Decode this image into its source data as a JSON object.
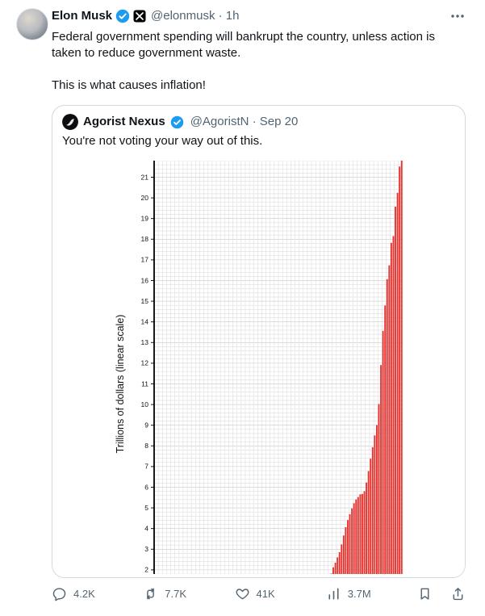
{
  "tweet": {
    "author": "Elon Musk",
    "meta": "@elonmusk · 1h",
    "text_1": "Federal government spending will bankrupt the country, unless action is taken to reduce government waste.",
    "text_2": "This is what causes inflation!"
  },
  "quote": {
    "author": "Agorist Nexus",
    "meta": "@AgoristN · Sep 20",
    "text": "You're not voting your way out of this."
  },
  "actions": {
    "reply": "4.2K",
    "repost": "7.7K",
    "like": "41K",
    "views": "3.7M"
  },
  "colors": {
    "accent_blue": "#1d9bf0",
    "text_primary": "#0f1419",
    "text_secondary": "#536471",
    "card_border": "#cfd9de",
    "bar_red": "#e73430"
  },
  "icons": [
    "verified-badge-icon",
    "x-affiliate-badge-icon",
    "more-icon",
    "reply-icon",
    "repost-icon",
    "like-icon",
    "views-icon",
    "bookmark-icon",
    "share-icon"
  ],
  "chart_data": {
    "type": "bar",
    "title": "",
    "xlabel": "",
    "ylabel": "Trillions of dollars (linear scale)",
    "yticks": [
      2,
      3,
      4,
      5,
      6,
      7,
      8,
      9,
      10,
      11,
      12,
      13,
      14,
      15,
      16,
      17,
      18,
      19,
      20,
      21
    ],
    "ylim_visible": [
      1.8,
      21.8
    ],
    "x_start_year": 1900,
    "x_end_year": 2019,
    "bar_color": "#e73430",
    "grid": true,
    "legend": "none",
    "values": [
      0.0021,
      0.0021,
      0.0021,
      0.0022,
      0.0023,
      0.0024,
      0.0025,
      0.0026,
      0.0027,
      0.0026,
      0.0026,
      0.0027,
      0.0027,
      0.0028,
      0.0029,
      0.003,
      0.0036,
      0.0059,
      0.0147,
      0.0274,
      0.0259,
      0.024,
      0.023,
      0.0224,
      0.021,
      0.0205,
      0.0196,
      0.0185,
      0.0175,
      0.0169,
      0.0162,
      0.0168,
      0.0194,
      0.0227,
      0.027,
      0.0287,
      0.0337,
      0.0364,
      0.0371,
      0.0404,
      0.043,
      0.049,
      0.0724,
      0.1367,
      0.2011,
      0.2587,
      0.2694,
      0.2583,
      0.2523,
      0.2527,
      0.2572,
      0.2552,
      0.2592,
      0.266,
      0.2712,
      0.2744,
      0.2728,
      0.2705,
      0.2763,
      0.2847,
      0.2863,
      0.289,
      0.2983,
      0.3058,
      0.3118,
      0.3173,
      0.3197,
      0.3266,
      0.3479,
      0.3537,
      0.3709,
      0.3981,
      0.4271,
      0.4581,
      0.4751,
      0.5331,
      0.62,
      0.6986,
      0.7714,
      0.8267,
      0.9075,
      0.9979,
      1.142,
      1.377,
      1.572,
      1.823,
      2.125,
      2.35,
      2.602,
      2.857,
      3.233,
      3.665,
      4.065,
      4.411,
      4.693,
      4.974,
      5.225,
      5.413,
      5.526,
      5.656,
      5.674,
      5.807,
      6.228,
      6.783,
      7.379,
      7.933,
      8.507,
      9.008,
      10.025,
      11.91,
      13.562,
      14.79,
      16.066,
      16.738,
      17.824,
      18.151,
      19.573,
      20.245,
      21.516,
      22.719
    ]
  }
}
